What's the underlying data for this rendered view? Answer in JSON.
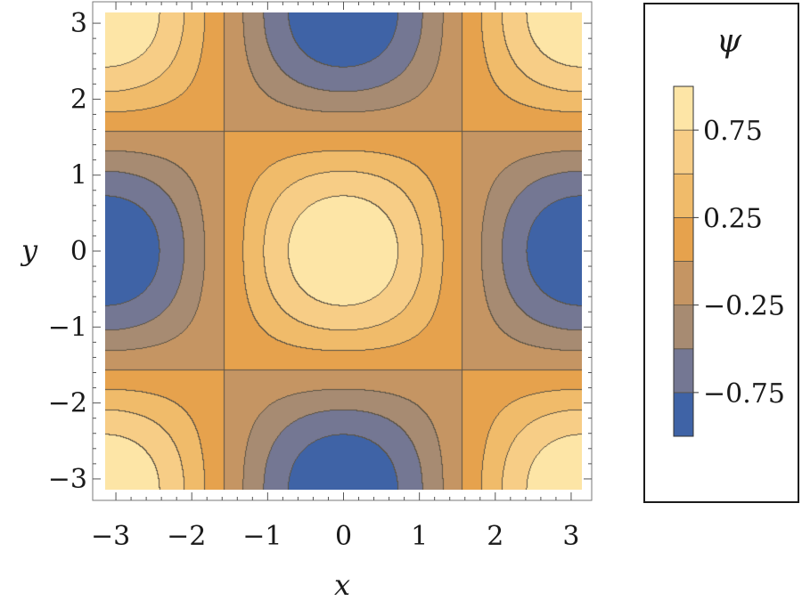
{
  "chart_data": {
    "type": "heatmap",
    "subtype": "filled-contour",
    "function": "cos(x)*cos(y)",
    "xlabel": "x",
    "ylabel": "y",
    "xlim": [
      -3.14159,
      3.14159
    ],
    "ylim": [
      -3.14159,
      3.14159
    ],
    "x_ticks": [
      -3,
      -2,
      -1,
      0,
      1,
      2,
      3
    ],
    "y_ticks": [
      -3,
      -2,
      -1,
      0,
      1,
      2,
      3
    ],
    "x_tick_labels": [
      "−3",
      "−2",
      "−1",
      "0",
      "1",
      "2",
      "3"
    ],
    "y_tick_labels": [
      "−3",
      "−2",
      "−1",
      "0",
      "1",
      "2",
      "3"
    ],
    "contour_levels": [
      -1.0,
      -0.75,
      -0.5,
      -0.25,
      0.0,
      0.25,
      0.5,
      0.75,
      1.0
    ],
    "band_colors": [
      "#3f63a6",
      "#747793",
      "#a78b72",
      "#c59563",
      "#e6a24d",
      "#f0bb6a",
      "#f7cd86",
      "#fde5a6"
    ],
    "contour_line_color": "#5b5345",
    "legend": {
      "title": "ψ",
      "position": "right",
      "tick_values": [
        0.75,
        0.25,
        -0.25,
        -0.75
      ],
      "tick_labels": [
        "0.75",
        "0.25",
        "−0.25",
        "−0.75"
      ]
    },
    "grid": false
  }
}
